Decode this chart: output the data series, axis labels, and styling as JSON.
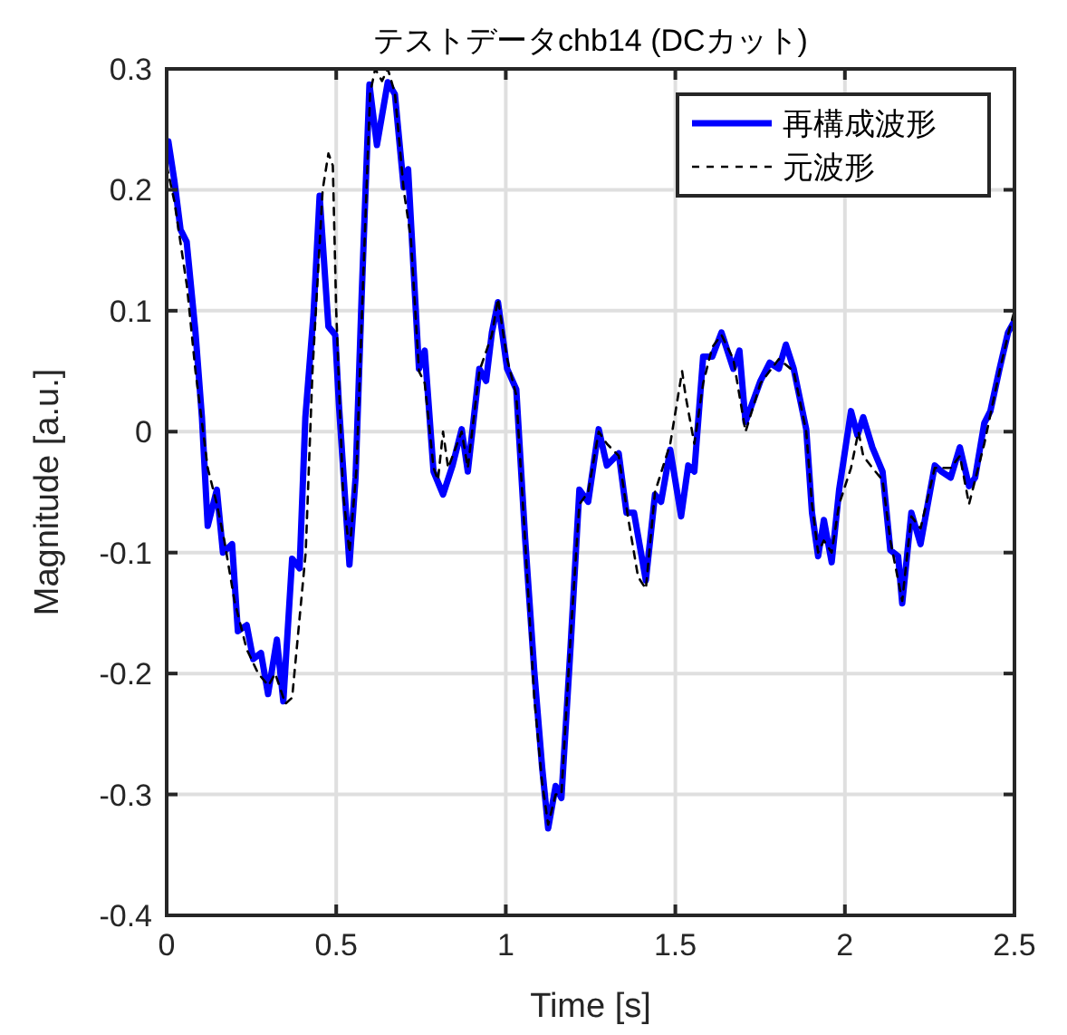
{
  "chart_data": {
    "type": "line",
    "title": "テストデータchb14 (DCカット)",
    "xlabel": "Time [s]",
    "ylabel": "Magnitude [a.u.]",
    "xlim": [
      0,
      2.5
    ],
    "xticks": [
      0,
      0.5,
      1,
      1.5,
      2,
      2.5
    ],
    "ylim": [
      -0.4,
      0.3
    ],
    "yticks": [
      -0.4,
      -0.3,
      -0.2,
      -0.1,
      0,
      0.1,
      0.2,
      0.3
    ],
    "grid": true,
    "legend": "top right",
    "series": [
      {
        "name": "再構成波形",
        "color": "#0000ff",
        "line_style": "solid",
        "x": [
          0.005,
          0.023,
          0.041,
          0.059,
          0.085,
          0.104,
          0.121,
          0.148,
          0.166,
          0.193,
          0.21,
          0.236,
          0.255,
          0.278,
          0.299,
          0.325,
          0.344,
          0.37,
          0.392,
          0.409,
          0.433,
          0.451,
          0.477,
          0.497,
          0.508,
          0.539,
          0.557,
          0.575,
          0.598,
          0.62,
          0.652,
          0.673,
          0.699,
          0.712,
          0.744,
          0.761,
          0.787,
          0.815,
          0.843,
          0.87,
          0.888,
          0.922,
          0.942,
          0.959,
          0.977,
          1.004,
          1.031,
          1.057,
          1.084,
          1.107,
          1.125,
          1.147,
          1.164,
          1.191,
          1.217,
          1.243,
          1.274,
          1.298,
          1.333,
          1.356,
          1.378,
          1.413,
          1.44,
          1.458,
          1.485,
          1.517,
          1.538,
          1.556,
          1.582,
          1.609,
          1.636,
          1.671,
          1.689,
          1.707,
          1.751,
          1.778,
          1.805,
          1.826,
          1.849,
          1.886,
          1.903,
          1.921,
          1.938,
          1.961,
          1.983,
          2.018,
          2.037,
          2.054,
          2.081,
          2.111,
          2.134,
          2.157,
          2.169,
          2.196,
          2.223,
          2.265,
          2.285,
          2.312,
          2.339,
          2.366,
          2.384,
          2.411,
          2.429,
          2.456,
          2.481,
          2.497
        ],
        "values": [
          0.24,
          0.207,
          0.167,
          0.157,
          0.082,
          0.012,
          -0.078,
          -0.048,
          -0.1,
          -0.093,
          -0.165,
          -0.16,
          -0.188,
          -0.183,
          -0.217,
          -0.172,
          -0.223,
          -0.105,
          -0.113,
          0.012,
          0.097,
          0.195,
          0.087,
          0.08,
          0.022,
          -0.11,
          -0.038,
          0.112,
          0.287,
          0.237,
          0.289,
          0.279,
          0.202,
          0.217,
          0.052,
          0.067,
          -0.033,
          -0.052,
          -0.028,
          0.002,
          -0.033,
          0.052,
          0.042,
          0.082,
          0.107,
          0.052,
          0.035,
          -0.088,
          -0.198,
          -0.277,
          -0.328,
          -0.293,
          -0.303,
          -0.178,
          -0.048,
          -0.058,
          0.002,
          -0.028,
          -0.018,
          -0.067,
          -0.067,
          -0.123,
          -0.052,
          -0.058,
          -0.015,
          -0.07,
          -0.028,
          -0.033,
          0.062,
          0.062,
          0.082,
          0.052,
          0.067,
          0.008,
          0.042,
          0.057,
          0.052,
          0.072,
          0.052,
          0.002,
          -0.067,
          -0.103,
          -0.073,
          -0.108,
          -0.048,
          0.017,
          -0.003,
          0.012,
          -0.013,
          -0.033,
          -0.098,
          -0.103,
          -0.142,
          -0.067,
          -0.093,
          -0.028,
          -0.033,
          -0.038,
          -0.013,
          -0.045,
          -0.038,
          0.007,
          0.017,
          0.052,
          0.082,
          0.09
        ]
      },
      {
        "name": "元波形",
        "color": "#000000",
        "line_style": "dashed",
        "x": [
          0,
          0.023,
          0.06,
          0.085,
          0.121,
          0.148,
          0.17,
          0.2,
          0.236,
          0.27,
          0.3,
          0.32,
          0.35,
          0.37,
          0.39,
          0.41,
          0.43,
          0.46,
          0.477,
          0.49,
          0.5,
          0.52,
          0.539,
          0.56,
          0.58,
          0.6,
          0.615,
          0.635,
          0.652,
          0.673,
          0.699,
          0.72,
          0.744,
          0.761,
          0.787,
          0.8,
          0.815,
          0.83,
          0.87,
          0.888,
          0.922,
          0.959,
          0.977,
          1.004,
          1.031,
          1.057,
          1.084,
          1.107,
          1.125,
          1.147,
          1.164,
          1.191,
          1.217,
          1.243,
          1.274,
          1.298,
          1.333,
          1.36,
          1.39,
          1.413,
          1.44,
          1.485,
          1.52,
          1.53,
          1.556,
          1.582,
          1.609,
          1.636,
          1.671,
          1.707,
          1.751,
          1.805,
          1.849,
          1.886,
          1.903,
          1.921,
          1.938,
          1.961,
          1.983,
          2.018,
          2.04,
          2.054,
          2.081,
          2.111,
          2.134,
          2.169,
          2.196,
          2.223,
          2.265,
          2.312,
          2.339,
          2.366,
          2.384,
          2.411,
          2.456,
          2.481,
          2.5
        ],
        "values": [
          0.22,
          0.19,
          0.12,
          0.05,
          -0.03,
          -0.06,
          -0.09,
          -0.14,
          -0.18,
          -0.2,
          -0.21,
          -0.2,
          -0.225,
          -0.22,
          -0.16,
          -0.1,
          0.05,
          0.2,
          0.23,
          0.22,
          0.1,
          -0.05,
          -0.1,
          -0.03,
          0.13,
          0.28,
          0.3,
          0.29,
          0.3,
          0.28,
          0.2,
          0.16,
          0.05,
          0.04,
          -0.03,
          -0.04,
          0.0,
          -0.03,
          0.0,
          -0.03,
          0.05,
          0.08,
          0.11,
          0.06,
          0.03,
          -0.09,
          -0.22,
          -0.29,
          -0.325,
          -0.3,
          -0.3,
          -0.17,
          -0.06,
          -0.05,
          0.0,
          -0.01,
          -0.02,
          -0.07,
          -0.12,
          -0.13,
          -0.05,
          -0.01,
          0.05,
          0.03,
          -0.01,
          0.04,
          0.07,
          0.08,
          0.06,
          0.0,
          0.04,
          0.06,
          0.05,
          0.0,
          -0.06,
          -0.1,
          -0.09,
          -0.1,
          -0.06,
          -0.03,
          0.0,
          -0.02,
          -0.03,
          -0.04,
          -0.09,
          -0.14,
          -0.07,
          -0.08,
          -0.03,
          -0.03,
          -0.02,
          -0.06,
          -0.04,
          -0.01,
          0.05,
          0.08,
          0.1
        ]
      }
    ]
  }
}
